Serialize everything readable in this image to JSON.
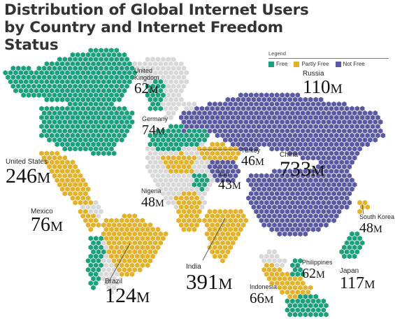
{
  "title": "Distribution of Global Internet Users by Country and Internet Freedom Status",
  "legend": {
    "title": "Legend",
    "items": [
      {
        "label": "Free",
        "color": "#1aa07a"
      },
      {
        "label": "Partly Free",
        "color": "#e3b12a"
      },
      {
        "label": "Not Free",
        "color": "#5a59a4"
      }
    ]
  },
  "colors": {
    "free": "#1aa07a",
    "partly_free": "#e3b12a",
    "not_free": "#5a59a4",
    "no_data": "#d8d8d8"
  },
  "unit": "M",
  "countries": [
    {
      "name": "United States",
      "value": "246",
      "status": "free"
    },
    {
      "name": "Mexico",
      "value": "76",
      "status": "partly_free"
    },
    {
      "name": "Brazil",
      "value": "124",
      "status": "partly_free"
    },
    {
      "name": "United Kingdom",
      "value": "62",
      "status": "free"
    },
    {
      "name": "Germany",
      "value": "74",
      "status": "free"
    },
    {
      "name": "Nigeria",
      "value": "48",
      "status": "partly_free"
    },
    {
      "name": "Russia",
      "value": "110",
      "status": "not_free"
    },
    {
      "name": "Turkey",
      "value": "46",
      "status": "partly_free"
    },
    {
      "name": "Iran",
      "value": "43",
      "status": "not_free"
    },
    {
      "name": "China",
      "value": "733",
      "status": "not_free"
    },
    {
      "name": "India",
      "value": "391",
      "status": "partly_free"
    },
    {
      "name": "South Korea",
      "value": "48",
      "status": "partly_free"
    },
    {
      "name": "Philippines",
      "value": "62",
      "status": "free"
    },
    {
      "name": "Japan",
      "value": "117",
      "status": "free"
    },
    {
      "name": "Indonesia",
      "value": "66",
      "status": "partly_free"
    }
  ]
}
